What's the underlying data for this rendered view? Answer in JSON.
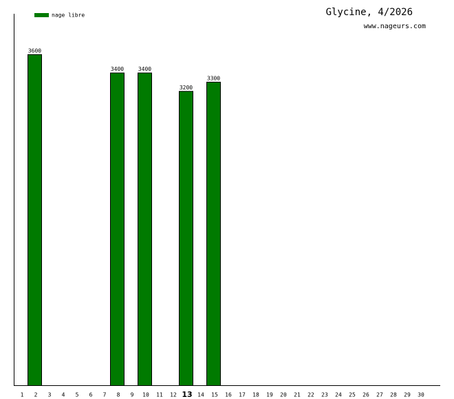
{
  "chart_data": {
    "type": "bar",
    "title": "Glycine, 4/2026",
    "subtitle": "www.nageurs.com",
    "categories": [
      "1",
      "2",
      "3",
      "4",
      "5",
      "6",
      "7",
      "8",
      "9",
      "10",
      "11",
      "12",
      "13",
      "14",
      "15",
      "16",
      "17",
      "18",
      "19",
      "20",
      "21",
      "22",
      "23",
      "24",
      "25",
      "26",
      "27",
      "28",
      "29",
      "30"
    ],
    "highlight": "13",
    "series": [
      {
        "name": "nage libre",
        "color": "#007a00",
        "values": [
          null,
          3600,
          null,
          null,
          null,
          null,
          null,
          3400,
          null,
          3400,
          null,
          null,
          3200,
          null,
          3300,
          null,
          null,
          null,
          null,
          null,
          null,
          null,
          null,
          null,
          null,
          null,
          null,
          null,
          null,
          null
        ]
      }
    ],
    "ylim": [
      0,
      4040
    ],
    "legend": "top-left"
  }
}
